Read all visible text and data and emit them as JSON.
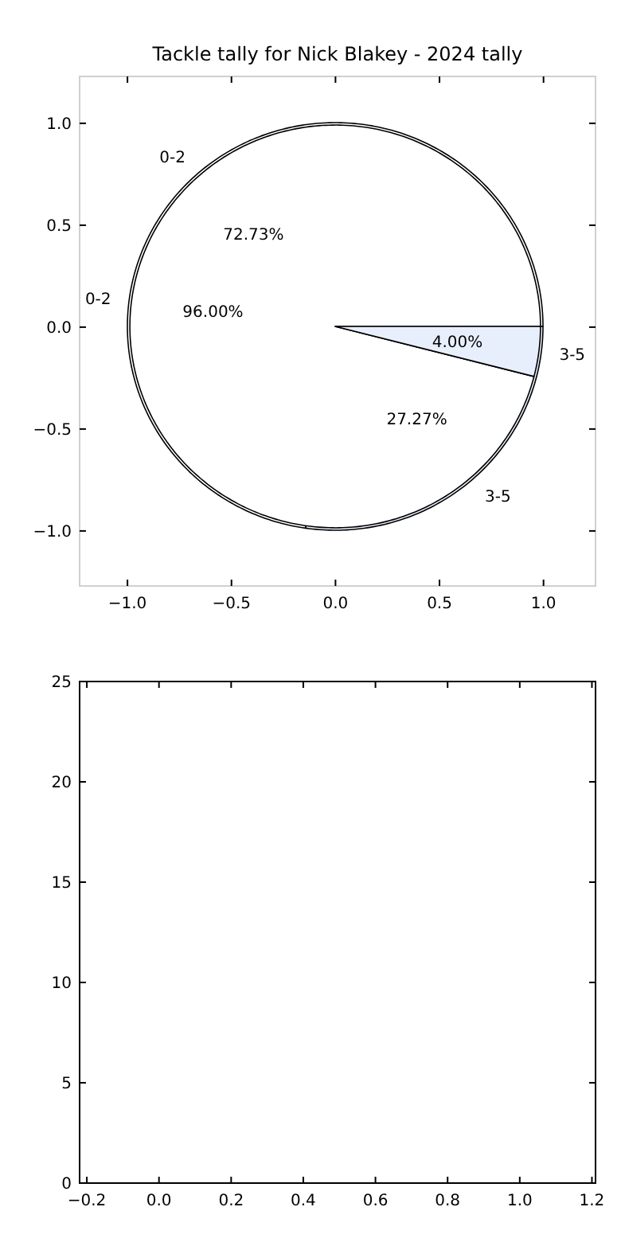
{
  "chart_data": [
    {
      "type": "scatter",
      "title": "Tackle tally for Nick Blakey - 2024 tally",
      "xlim": [
        -1.23,
        1.25
      ],
      "ylim": [
        -1.27,
        1.23
      ],
      "xticks": [
        {
          "value": -1,
          "label": "−1.0"
        },
        {
          "value": -0.5,
          "label": "−0.5"
        },
        {
          "value": 0,
          "label": "0.0"
        },
        {
          "value": 0.5,
          "label": "0.5"
        },
        {
          "value": 1,
          "label": "1.0"
        }
      ],
      "yticks": [
        {
          "value": -1,
          "label": "−1.0"
        },
        {
          "value": -0.5,
          "label": "−0.5"
        },
        {
          "value": 0,
          "label": "0.0"
        },
        {
          "value": 0.5,
          "label": "0.5"
        },
        {
          "value": 1,
          "label": "1.0"
        }
      ]
    },
    {
      "type": "pie",
      "categories": [
        "0-2",
        "3-5"
      ],
      "colors": [
        "#ffffff",
        "#e8effc"
      ],
      "values": [
        72.73,
        27.27
      ],
      "value_labels": [
        "72.73%",
        "27.27%"
      ]
    },
    {
      "type": "pie",
      "categories": [
        "0-2",
        "3-5"
      ],
      "colors": [
        "#ffffff",
        "#e8effc"
      ],
      "values": [
        96,
        4
      ],
      "value_labels": [
        "96.00%",
        "4.00%"
      ]
    },
    {
      "type": "scatter",
      "xlim": [
        -0.22,
        1.21
      ],
      "ylim": [
        0,
        25
      ],
      "xticks": [
        {
          "value": -0.2,
          "label": "−0.2"
        },
        {
          "value": 0,
          "label": "0.0"
        },
        {
          "value": 0.2,
          "label": "0.2"
        },
        {
          "value": 0.4,
          "label": "0.4"
        },
        {
          "value": 0.6,
          "label": "0.6"
        },
        {
          "value": 0.8,
          "label": "0.8"
        },
        {
          "value": 1,
          "label": "1.0"
        },
        {
          "value": 1.2,
          "label": "1.2"
        }
      ],
      "yticks": [
        0,
        5,
        10,
        15,
        20,
        25
      ]
    }
  ]
}
